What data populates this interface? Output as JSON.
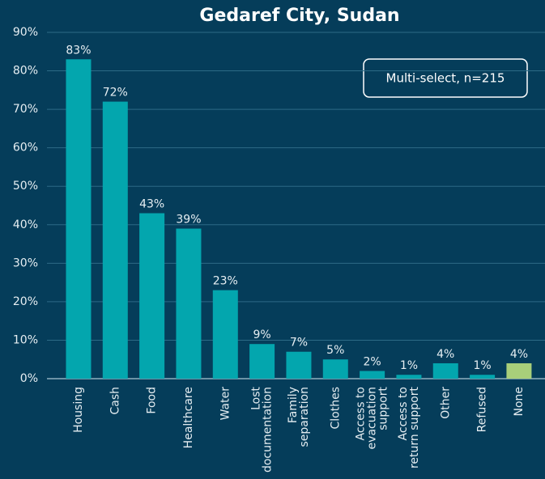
{
  "chart_data": {
    "type": "bar",
    "title": "Gedaref City, Sudan",
    "annotation": "Multi-select, n=215",
    "categories": [
      "Housing",
      "Cash",
      "Food",
      "Healthcare",
      "Water",
      "Lost\ndocumentation",
      "Family\nseparation",
      "Clothes",
      "Access to\nevacuation\nsupport",
      "Access to\nreturn support",
      "Other",
      "Refused",
      "None"
    ],
    "values": [
      83,
      72,
      43,
      39,
      23,
      9,
      7,
      5,
      2,
      1,
      4,
      1,
      4
    ],
    "value_labels": [
      "83%",
      "72%",
      "43%",
      "39%",
      "23%",
      "9%",
      "7%",
      "5%",
      "2%",
      "1%",
      "4%",
      "1%",
      "4%"
    ],
    "colors": [
      "#03a6ae",
      "#03a6ae",
      "#03a6ae",
      "#03a6ae",
      "#03a6ae",
      "#03a6ae",
      "#03a6ae",
      "#03a6ae",
      "#03a6ae",
      "#03a6ae",
      "#03a6ae",
      "#03a6ae",
      "#a8cf7a"
    ],
    "ylim": [
      0,
      90
    ],
    "yticks": [
      {
        "value": 0,
        "label": "0%"
      },
      {
        "value": 10,
        "label": "10%"
      },
      {
        "value": 20,
        "label": "20%"
      },
      {
        "value": 30,
        "label": "30%"
      },
      {
        "value": 40,
        "label": "40%"
      },
      {
        "value": 50,
        "label": "50%"
      },
      {
        "value": 60,
        "label": "60%"
      },
      {
        "value": 70,
        "label": "70%"
      },
      {
        "value": 80,
        "label": "80%"
      },
      {
        "value": 90,
        "label": "90%"
      }
    ],
    "grid": true
  }
}
